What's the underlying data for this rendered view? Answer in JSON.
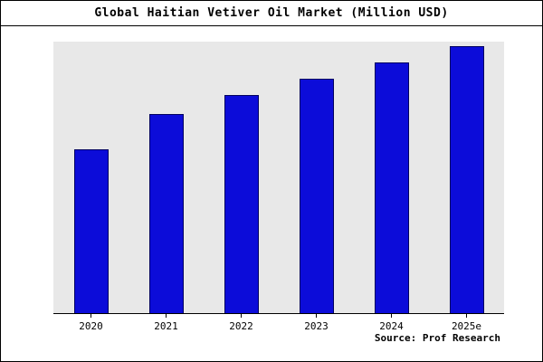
{
  "chart_data": {
    "type": "bar",
    "title": "Global Haitian Vetiver Oil Market (Million USD)",
    "categories": [
      "2020",
      "2021",
      "2022",
      "2023",
      "2024",
      "2025e"
    ],
    "values": [
      60,
      73,
      80,
      86,
      92,
      98
    ],
    "xlabel": "",
    "ylabel": "",
    "ylim": [
      0,
      100
    ],
    "grid": false,
    "legend": false,
    "layout_hints": {
      "y_axis_ticks_visible": false,
      "plot_background": "gray",
      "bar_outline": true
    }
  },
  "source": {
    "label": "Source: Prof Research"
  },
  "colors": {
    "bar_fill": "#0c0cd9",
    "bar_border": "#000060",
    "plot_bg": "#e8e8e8",
    "frame_border": "#000000"
  }
}
